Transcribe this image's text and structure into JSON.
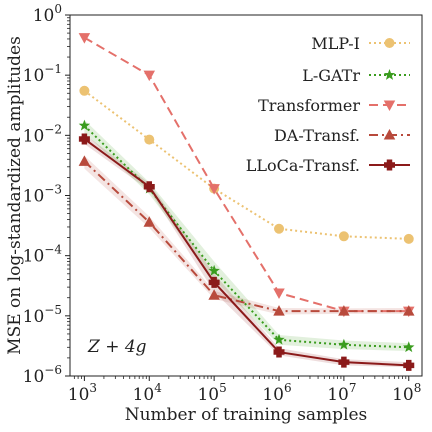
{
  "chart_data": {
    "type": "line",
    "title": "",
    "xlabel": "Number of training samples",
    "ylabel": "MSE on log-standardized amplitudes",
    "x_scale": "log",
    "y_scale": "log",
    "xlim": [
      600,
      160000000
    ],
    "ylim": [
      1e-06,
      1
    ],
    "x": [
      1000,
      10000,
      100000,
      1000000,
      10000000,
      100000000
    ],
    "x_ticks": [
      {
        "value": 1000,
        "base": "10",
        "exp": "3"
      },
      {
        "value": 10000,
        "base": "10",
        "exp": "4"
      },
      {
        "value": 100000,
        "base": "10",
        "exp": "5"
      },
      {
        "value": 1000000,
        "base": "10",
        "exp": "6"
      },
      {
        "value": 10000000,
        "base": "10",
        "exp": "7"
      },
      {
        "value": 100000000,
        "base": "10",
        "exp": "8"
      }
    ],
    "y_ticks": [
      {
        "value": 1,
        "base": "10",
        "exp": "0"
      },
      {
        "value": 0.1,
        "base": "10",
        "exp": "−1"
      },
      {
        "value": 0.01,
        "base": "10",
        "exp": "−2"
      },
      {
        "value": 0.001,
        "base": "10",
        "exp": "−3"
      },
      {
        "value": 0.0001,
        "base": "10",
        "exp": "−4"
      },
      {
        "value": 1e-05,
        "base": "10",
        "exp": "−5"
      },
      {
        "value": 1e-06,
        "base": "10",
        "exp": "−6"
      }
    ],
    "annotation": "Z + 4g",
    "legend_position": "top-right",
    "grid": false,
    "series": [
      {
        "name": "MLP-I",
        "color": "#ecc272",
        "style": "dotted",
        "marker": "circle",
        "values": [
          0.055,
          0.0085,
          0.0013,
          0.00028,
          0.00021,
          0.00019
        ]
      },
      {
        "name": "L-GATr",
        "color": "#3a9c1e",
        "style": "dotted",
        "marker": "star",
        "values": [
          0.0145,
          0.0013,
          5.6e-05,
          4e-06,
          3.3e-06,
          3e-06
        ],
        "band_low": [
          0.011,
          0.00105,
          4e-05,
          3.3e-06,
          2.8e-06,
          2.6e-06
        ],
        "band_high": [
          0.018,
          0.00165,
          8e-05,
          4.8e-06,
          3.9e-06,
          3.5e-06
        ]
      },
      {
        "name": "Transformer",
        "color": "#e4706a",
        "style": "dashed",
        "marker": "triangle-down",
        "values": [
          0.42,
          0.1,
          0.0013,
          2.4e-05,
          1.2e-05,
          1.2e-05
        ]
      },
      {
        "name": "DA-Transf.",
        "color": "#b84a3c",
        "style": "dashdot",
        "marker": "triangle-up",
        "values": [
          0.0037,
          0.00036,
          2.2e-05,
          1.2e-05,
          1.2e-05,
          1.2e-05
        ],
        "band_low": [
          0.0028,
          0.00029,
          1.9e-05,
          1.05e-05,
          1.08e-05,
          1.08e-05
        ],
        "band_high": [
          0.0046,
          0.00045,
          2.6e-05,
          1.35e-05,
          1.33e-05,
          1.35e-05
        ]
      },
      {
        "name": "LLoCa-Transf.",
        "color": "#8b1a1a",
        "style": "solid",
        "marker": "plus",
        "values": [
          0.0087,
          0.0014,
          3.6e-05,
          2.5e-06,
          1.7e-06,
          1.5e-06
        ],
        "band_low": [
          0.0072,
          0.00122,
          2.5e-05,
          2.2e-06,
          1.5e-06,
          1.4e-06
        ],
        "band_high": [
          0.0105,
          0.0016,
          5e-05,
          2.9e-06,
          1.9e-06,
          1.7e-06
        ]
      }
    ]
  }
}
